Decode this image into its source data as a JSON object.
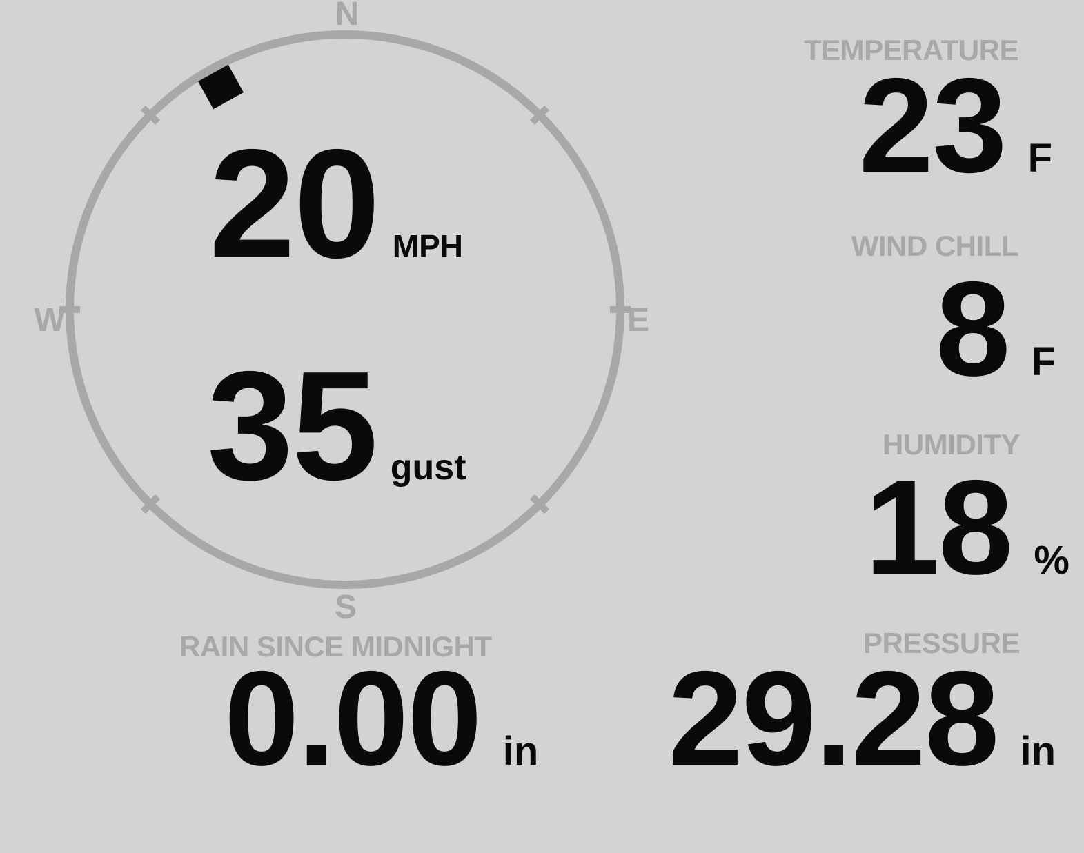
{
  "theme": {
    "background": "#d3d3d3",
    "muted": "#a8a8a8",
    "ink": "#0a0a0a"
  },
  "compass": {
    "cardinals": {
      "north": "N",
      "east": "E",
      "south": "S",
      "west": "W"
    },
    "wind_speed": {
      "value": "20",
      "unit": "MPH"
    },
    "wind_gust": {
      "value": "35",
      "unit": "gust"
    },
    "direction_indicator": {
      "bearing_deg": 331
    }
  },
  "metrics": {
    "temperature": {
      "label": "TEMPERATURE",
      "value": "23",
      "unit": "F"
    },
    "wind_chill": {
      "label": "WIND CHILL",
      "value": "8",
      "unit": "F"
    },
    "humidity": {
      "label": "HUMIDITY",
      "value": "18",
      "unit": "%"
    },
    "rain_since_midnight": {
      "label": "RAIN SINCE MIDNIGHT",
      "value": "0.00",
      "unit": "in"
    },
    "pressure": {
      "label": "PRESSURE",
      "value": "29.28",
      "unit": "in"
    }
  }
}
